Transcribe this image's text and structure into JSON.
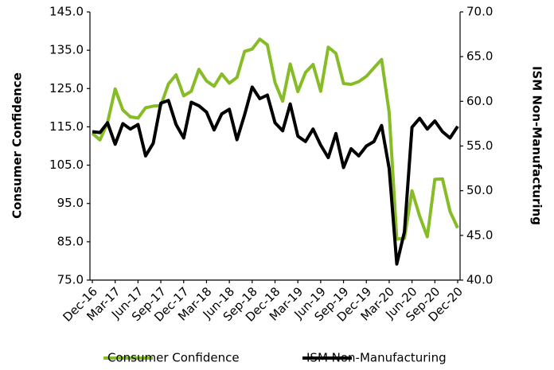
{
  "chart_data": {
    "type": "line",
    "categories": [
      "Dec-16",
      null,
      null,
      "Mar-17",
      null,
      null,
      "Jun-17",
      null,
      null,
      "Sep-17",
      null,
      null,
      "Dec-17",
      null,
      null,
      "Mar-18",
      null,
      null,
      "Jun-18",
      null,
      null,
      "Sep-18",
      null,
      null,
      "Dec-18",
      null,
      null,
      "Mar-19",
      null,
      null,
      "Jun-19",
      null,
      null,
      "Sep-19",
      null,
      null,
      "Dec-19",
      null,
      null,
      "Mar-20",
      null,
      null,
      "Jun-20",
      null,
      null,
      "Sep-20",
      null,
      null,
      "Dec-20"
    ],
    "ylabel": "Consumer Confidence",
    "y2label": "ISM Non-Manufacturing",
    "ylim": [
      75,
      145
    ],
    "yticks": [
      {
        "value": 75,
        "label": "75.0"
      },
      {
        "value": 85,
        "label": "85.0"
      },
      {
        "value": 95,
        "label": "95.0"
      },
      {
        "value": 105,
        "label": "105.0"
      },
      {
        "value": 115,
        "label": "115.0"
      },
      {
        "value": 125,
        "label": "125.0"
      },
      {
        "value": 135,
        "label": "135.0"
      },
      {
        "value": 145,
        "label": "145.0"
      }
    ],
    "y2lim": [
      40,
      70
    ],
    "y2ticks": [
      {
        "value": 40,
        "label": "40.0"
      },
      {
        "value": 45,
        "label": "45.0"
      },
      {
        "value": 50,
        "label": "50.0"
      },
      {
        "value": 55,
        "label": "55.0"
      },
      {
        "value": 60,
        "label": "60.0"
      },
      {
        "value": 65,
        "label": "65.0"
      },
      {
        "value": 70,
        "label": "70.0"
      }
    ],
    "legend": "bottom",
    "series": [
      {
        "name": "Consumer Confidence",
        "color": "#86bc25",
        "values": [
          113.3,
          111.6,
          116.1,
          124.9,
          119.4,
          117.6,
          117.3,
          120.0,
          120.4,
          120.6,
          126.2,
          128.6,
          123.1,
          124.3,
          130.0,
          127.0,
          125.6,
          128.8,
          126.4,
          127.9,
          134.7,
          135.3,
          137.9,
          136.4,
          126.6,
          121.7,
          131.4,
          124.2,
          129.2,
          131.3,
          124.3,
          135.8,
          134.2,
          126.3,
          126.1,
          126.8,
          128.2,
          130.4,
          132.6,
          118.8,
          85.7,
          85.9,
          98.3,
          91.7,
          86.3,
          101.3,
          101.4,
          92.9,
          88.6
        ]
      },
      {
        "name": "ISM Non-Manufacturing",
        "color": "#000000",
        "axis": "y2",
        "values": [
          56.6,
          56.5,
          57.6,
          55.2,
          57.5,
          56.9,
          57.4,
          53.9,
          55.3,
          59.8,
          60.1,
          57.4,
          55.9,
          59.9,
          59.5,
          58.8,
          56.8,
          58.6,
          59.1,
          55.7,
          58.5,
          61.6,
          60.3,
          60.7,
          57.6,
          56.7,
          59.7,
          56.1,
          55.5,
          56.9,
          55.1,
          53.7,
          56.4,
          52.6,
          54.7,
          53.9,
          55.0,
          55.5,
          57.3,
          52.5,
          41.8,
          45.4,
          57.1,
          58.1,
          56.9,
          57.8,
          56.6,
          55.9,
          57.2
        ]
      }
    ]
  }
}
